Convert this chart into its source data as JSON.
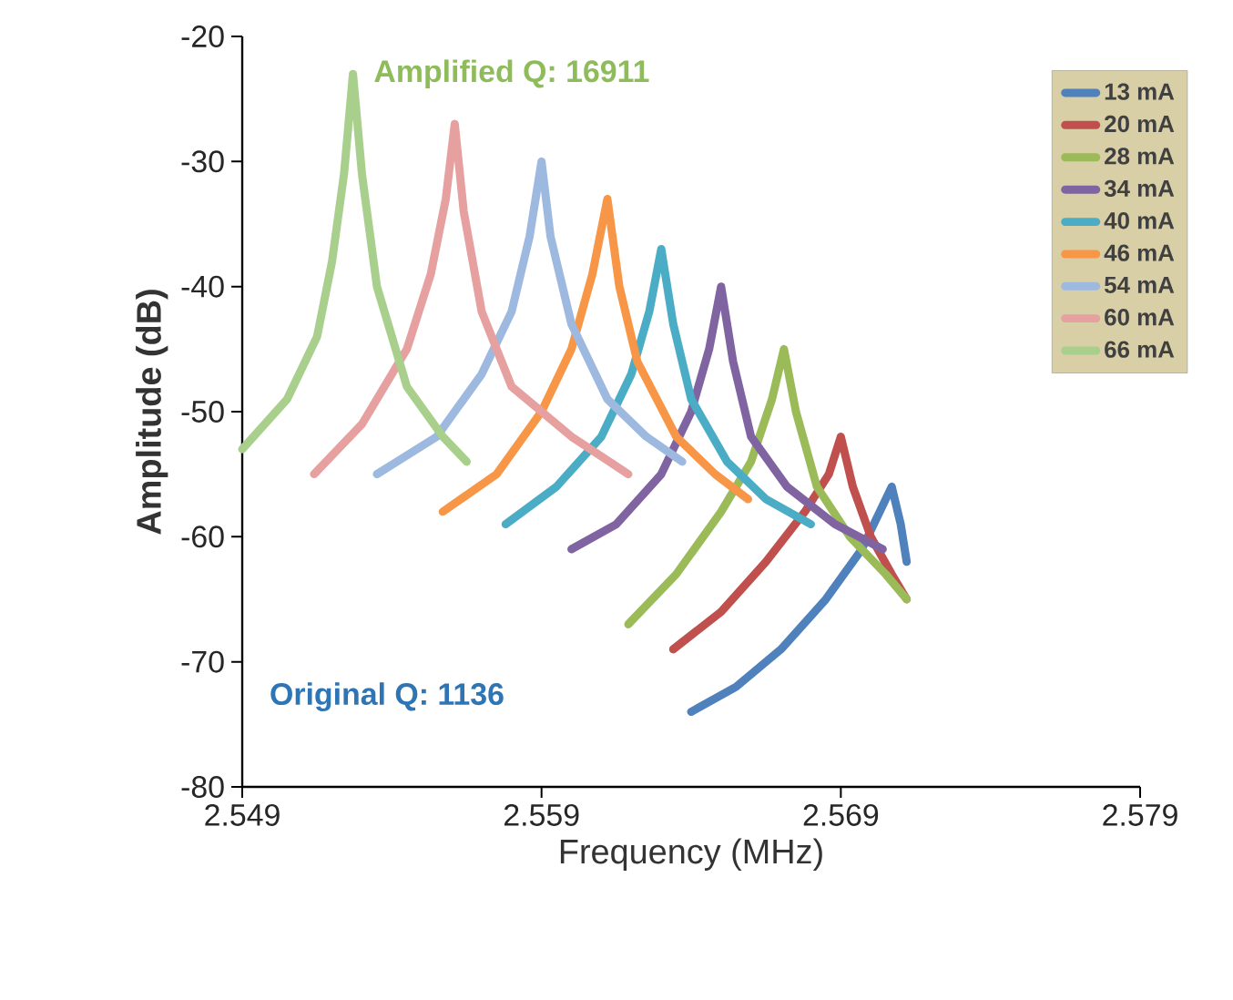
{
  "chart_data": {
    "type": "line",
    "xlabel": "Frequency (MHz)",
    "ylabel": "Amplitude (dB)",
    "xlim": [
      2.549,
      2.579
    ],
    "ylim": [
      -80,
      -20
    ],
    "xticks": [
      2.549,
      2.559,
      2.569,
      2.579
    ],
    "yticks": [
      -80,
      -70,
      -60,
      -50,
      -40,
      -30,
      -20
    ],
    "legend": "top right",
    "grid": false,
    "marker": "none",
    "line_style": "solid",
    "annotations": [
      "Amplified Q: 16911",
      "Original Q: 1136"
    ],
    "series": [
      {
        "name": "13 mA",
        "color": "#4f81bd",
        "x": [
          2.564,
          2.5655,
          2.567,
          2.5685,
          2.5697,
          2.5703,
          2.5707,
          2.571,
          2.5712
        ],
        "values": [
          -74,
          -72,
          -69,
          -65,
          -61,
          -58,
          -56,
          -59,
          -62
        ]
      },
      {
        "name": "20 mA",
        "color": "#c0504d",
        "x": [
          2.5634,
          2.565,
          2.5665,
          2.5678,
          2.5686,
          2.569,
          2.5694,
          2.57,
          2.5707,
          2.5712
        ],
        "values": [
          -69,
          -66,
          -62,
          -58,
          -55,
          -52,
          -56,
          -60,
          -63,
          -65
        ]
      },
      {
        "name": "28 mA",
        "color": "#9bbb59",
        "x": [
          2.5619,
          2.5635,
          2.565,
          2.566,
          2.5667,
          2.5671,
          2.5675,
          2.5682,
          2.5693,
          2.5705,
          2.5712
        ],
        "values": [
          -67,
          -63,
          -58,
          -54,
          -49,
          -45,
          -50,
          -56,
          -60,
          -63,
          -65
        ]
      },
      {
        "name": "34 mA",
        "color": "#8064a2",
        "x": [
          2.56,
          2.5615,
          2.563,
          2.564,
          2.5646,
          2.565,
          2.5654,
          2.566,
          2.5672,
          2.5688,
          2.5704
        ],
        "values": [
          -61,
          -59,
          -55,
          -50,
          -45,
          -40,
          -46,
          -52,
          -56,
          -59,
          -61
        ]
      },
      {
        "name": "40 mA",
        "color": "#4bacc6",
        "x": [
          2.5578,
          2.5595,
          2.561,
          2.562,
          2.5626,
          2.563,
          2.5634,
          2.564,
          2.5652,
          2.5665,
          2.568
        ],
        "values": [
          -59,
          -56,
          -52,
          -47,
          -42,
          -37,
          -43,
          -49,
          -54,
          -57,
          -59
        ]
      },
      {
        "name": "46 mA",
        "color": "#f79646",
        "x": [
          2.5557,
          2.5575,
          2.559,
          2.56,
          2.5607,
          2.5612,
          2.5616,
          2.5622,
          2.5635,
          2.5648,
          2.5659
        ],
        "values": [
          -58,
          -55,
          -50,
          -45,
          -39,
          -33,
          -40,
          -46,
          -52,
          -55,
          -57
        ]
      },
      {
        "name": "54 mA",
        "color": "#9db9e0",
        "x": [
          2.5535,
          2.5555,
          2.557,
          2.558,
          2.5586,
          2.559,
          2.5593,
          2.56,
          2.5612,
          2.5625,
          2.5637
        ],
        "values": [
          -55,
          -52,
          -47,
          -42,
          -36,
          -30,
          -36,
          -43,
          -49,
          -52,
          -54
        ]
      },
      {
        "name": "60 mA",
        "color": "#e6a0a0",
        "x": [
          2.5514,
          2.553,
          2.5545,
          2.5553,
          2.5558,
          2.5561,
          2.5564,
          2.557,
          2.558,
          2.56,
          2.5619
        ],
        "values": [
          -55,
          -51,
          -45,
          -39,
          -33,
          -27,
          -34,
          -42,
          -48,
          -52,
          -55
        ]
      },
      {
        "name": "66 mA",
        "color": "#a9cf8c",
        "x": [
          2.549,
          2.5505,
          2.5515,
          2.552,
          2.5524,
          2.5527,
          2.553,
          2.5535,
          2.5545,
          2.5557,
          2.5565
        ],
        "values": [
          -53,
          -49,
          -44,
          -38,
          -31,
          -23,
          -31,
          -40,
          -48,
          -52,
          -54
        ]
      }
    ]
  }
}
